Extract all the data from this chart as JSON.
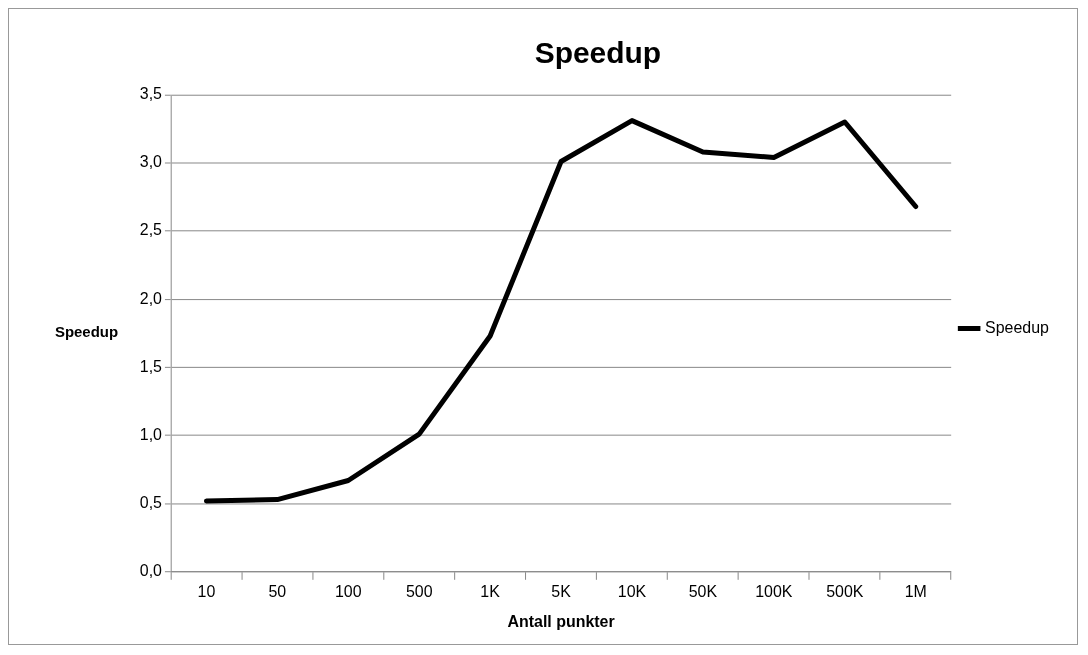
{
  "chart_data": {
    "type": "line",
    "title": "Speedup",
    "xlabel": "Antall punkter",
    "ylabel": "Speedup",
    "categories": [
      "10",
      "50",
      "100",
      "500",
      "1K",
      "5K",
      "10K",
      "50K",
      "100K",
      "500K",
      "1M"
    ],
    "series": [
      {
        "name": "Speedup",
        "color": "#000000",
        "values": [
          0.52,
          0.53,
          0.67,
          1.01,
          1.73,
          3.01,
          3.31,
          3.08,
          3.04,
          3.3,
          2.68
        ]
      }
    ],
    "ylim": [
      0,
      3.5
    ],
    "yticks": [
      {
        "value": 0,
        "label": "0,0"
      },
      {
        "value": 0.5,
        "label": "0,5"
      },
      {
        "value": 1,
        "label": "1,0"
      },
      {
        "value": 1.5,
        "label": "1,5"
      },
      {
        "value": 2,
        "label": "2,0"
      },
      {
        "value": 2.5,
        "label": "2,5"
      },
      {
        "value": 3,
        "label": "3,0"
      },
      {
        "value": 3.5,
        "label": "3,5"
      }
    ],
    "grid": "y",
    "legend": "right",
    "marker": "none",
    "line_style": "solid"
  }
}
